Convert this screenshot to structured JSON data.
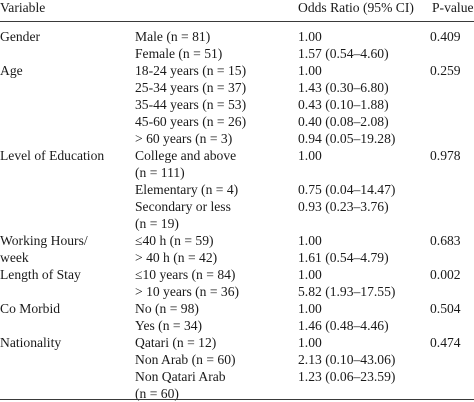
{
  "table": {
    "headers": {
      "variable": "Variable",
      "odds_ratio": "Odds Ratio (95% CI)",
      "p_value": "P-value"
    },
    "rows": [
      {
        "variable": "Gender",
        "category": "Male (n = 81)",
        "or": "1.00",
        "p": "0.409"
      },
      {
        "variable": "",
        "category": "Female (n = 51)",
        "or": "1.57 (0.54–4.60)",
        "p": ""
      },
      {
        "variable": "Age",
        "category": "18-24 years (n = 15)",
        "or": "1.00",
        "p": "0.259"
      },
      {
        "variable": "",
        "category": "25-34 years (n = 37)",
        "or": "1.43 (0.30–6.80)",
        "p": ""
      },
      {
        "variable": "",
        "category": "35-44 years (n = 53)",
        "or": "0.43 (0.10–1.88)",
        "p": ""
      },
      {
        "variable": "",
        "category": "45-60 years (n = 26)",
        "or": "0.40 (0.08–2.08)",
        "p": ""
      },
      {
        "variable": "",
        "category": "> 60 years (n = 3)",
        "or": "0.94 (0.05–19.28)",
        "p": ""
      },
      {
        "variable": "Level of Education",
        "category": "College and above",
        "or": "1.00",
        "p": "0.978"
      },
      {
        "variable": "",
        "category": "(n = 111)",
        "or": "",
        "p": ""
      },
      {
        "variable": "",
        "category": "Elementary (n = 4)",
        "or": "0.75 (0.04–14.47)",
        "p": ""
      },
      {
        "variable": "",
        "category": "Secondary or less",
        "or": "0.93 (0.23–3.76)",
        "p": ""
      },
      {
        "variable": "",
        "category": "(n = 19)",
        "or": "",
        "p": ""
      },
      {
        "variable": "Working Hours/",
        "category": "≤40 h (n = 59)",
        "or": "1.00",
        "p": "0.683"
      },
      {
        "variable": "week",
        "category": "> 40 h (n = 42)",
        "or": "1.61 (0.54–4.79)",
        "p": ""
      },
      {
        "variable": "Length of Stay",
        "category": "≤10 years (n = 84)",
        "or": "1.00",
        "p": "0.002"
      },
      {
        "variable": "",
        "category": "> 10 years (n = 36)",
        "or": "5.82 (1.93–17.55)",
        "p": ""
      },
      {
        "variable": "Co Morbid",
        "category": "No (n = 98)",
        "or": "1.00",
        "p": "0.504"
      },
      {
        "variable": "",
        "category": "Yes (n = 34)",
        "or": "1.46 (0.48–4.46)",
        "p": ""
      },
      {
        "variable": "Nationality",
        "category": "Qatari (n = 12)",
        "or": "1.00",
        "p": "0.474"
      },
      {
        "variable": "",
        "category": "Non Arab (n = 60)",
        "or": "2.13 (0.10–43.06)",
        "p": ""
      },
      {
        "variable": "",
        "category": "Non Qatari Arab",
        "or": "1.23 (0.06–23.59)",
        "p": ""
      },
      {
        "variable": "",
        "category": "(n = 60)",
        "or": "",
        "p": ""
      }
    ]
  }
}
